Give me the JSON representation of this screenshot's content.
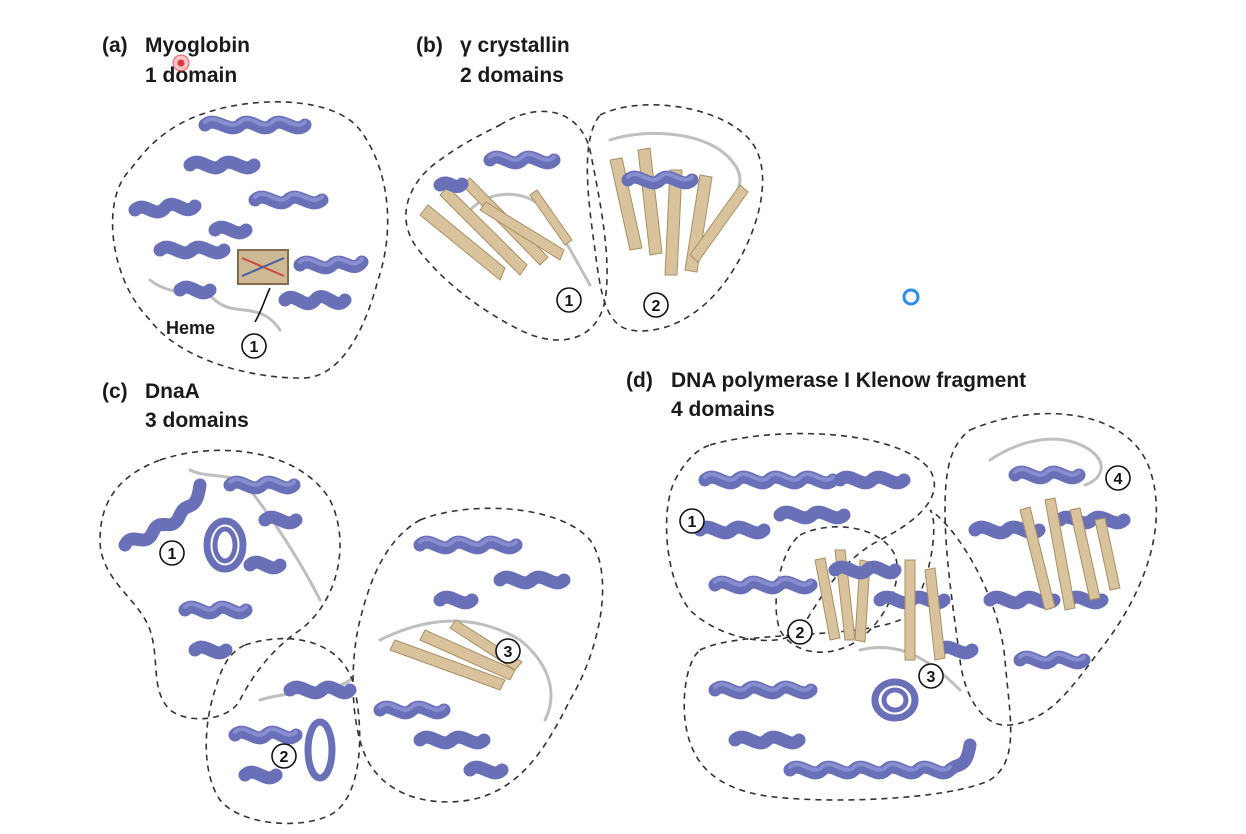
{
  "colors": {
    "helix": "#6a70b8",
    "strand": "#d8c39c",
    "loop": "#bfbfbf",
    "cursor_red": "#e0383c",
    "cursor_blue": "#2c8ee8"
  },
  "panels": {
    "a": {
      "label": "(a)",
      "name": "Myoglobin",
      "domains": "1 domain",
      "heme_label": "Heme",
      "domain_numbers": [
        "1"
      ]
    },
    "b": {
      "label": "(b)",
      "name": "γ crystallin",
      "domains": "2 domains",
      "domain_numbers": [
        "1",
        "2"
      ]
    },
    "c": {
      "label": "(c)",
      "name": "DnaA",
      "domains": "3 domains",
      "domain_numbers": [
        "1",
        "2",
        "3"
      ]
    },
    "d": {
      "label": "(d)",
      "name": "DNA polymerase I Klenow fragment",
      "domains": "4 domains",
      "domain_numbers": [
        "1",
        "2",
        "3",
        "4"
      ]
    }
  }
}
